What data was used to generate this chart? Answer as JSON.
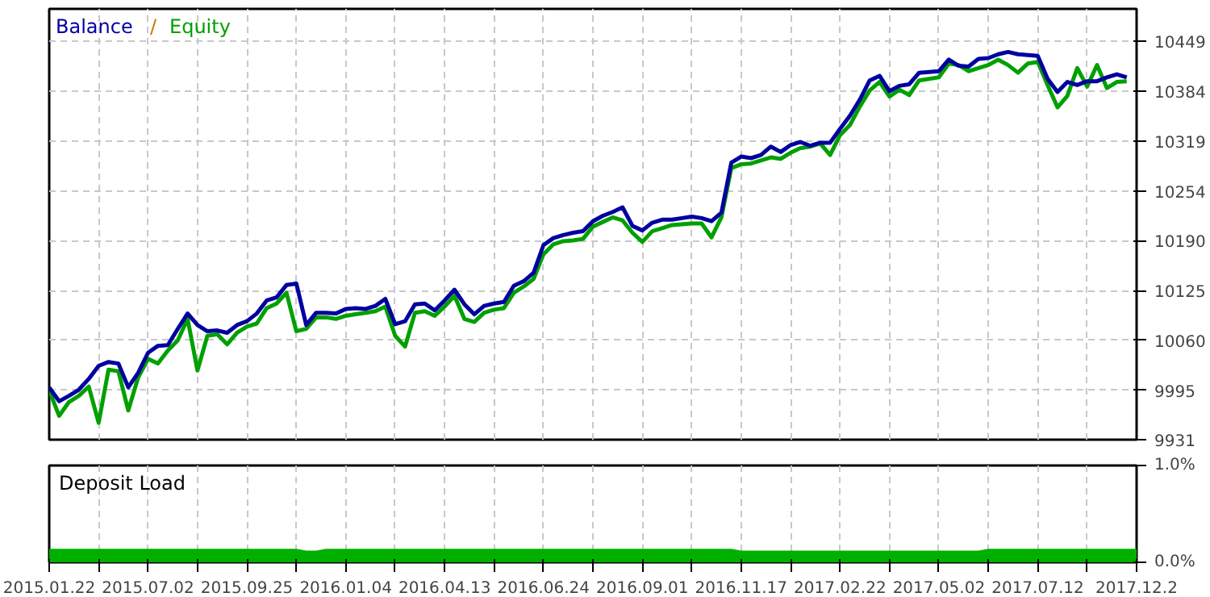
{
  "chart_data": [
    {
      "type": "line",
      "tick_labels": "y",
      "grid": true,
      "legend": "top left",
      "annotations": [
        "/"
      ],
      "categories": [
        "2015.01.22",
        null,
        null,
        null,
        null,
        null,
        null,
        null,
        null,
        null,
        "2015.07.02",
        null,
        null,
        null,
        null,
        null,
        null,
        null,
        null,
        null,
        "2015.09.25",
        null,
        null,
        null,
        null,
        null,
        null,
        null,
        null,
        null,
        "2016.01.04",
        null,
        null,
        null,
        null,
        null,
        null,
        null,
        null,
        null,
        "2016.04.13",
        null,
        null,
        null,
        null,
        null,
        null,
        null,
        null,
        null,
        "2016.06.24",
        null,
        null,
        null,
        null,
        null,
        null,
        null,
        null,
        null,
        "2016.09.01",
        null,
        null,
        null,
        null,
        null,
        null,
        null,
        null,
        null,
        "2016.11.17",
        null,
        null,
        null,
        null,
        null,
        null,
        null,
        null,
        null,
        "2017.02.22",
        null,
        null,
        null,
        null,
        null,
        null,
        null,
        null,
        null,
        "2017.05.02",
        null,
        null,
        null,
        null,
        null,
        null,
        null,
        null,
        null,
        "2017.07.12",
        null,
        null,
        null,
        null,
        null,
        null,
        null,
        null,
        null,
        "2017.12.2"
      ],
      "ylim": [
        9931,
        10491
      ],
      "yticks": [
        9931,
        9995,
        10060,
        10125,
        10190,
        10254,
        10319,
        10384,
        10449
      ],
      "series": [
        {
          "name": "Equity",
          "color": "#00a000",
          "values": [
            9995,
            9962,
            9980,
            9988,
            10000,
            9953,
            10022,
            10020,
            9969,
            10012,
            10036,
            10030,
            10047,
            10060,
            10088,
            10021,
            10066,
            10068,
            10055,
            10070,
            10078,
            10082,
            10102,
            10108,
            10122,
            10072,
            10075,
            10090,
            10090,
            10088,
            10092,
            10094,
            10096,
            10098,
            10104,
            10066,
            10052,
            10096,
            10098,
            10092,
            10104,
            10118,
            10088,
            10084,
            10096,
            10100,
            10102,
            10122,
            10130,
            10140,
            10172,
            10185,
            10189,
            10190,
            10192,
            10208,
            10214,
            10220,
            10216,
            10200,
            10188,
            10202,
            10206,
            10210,
            10211,
            10212,
            10212,
            10194,
            10220,
            10284,
            10289,
            10290,
            10294,
            10298,
            10296,
            10304,
            10310,
            10312,
            10316,
            10301,
            10327,
            10340,
            10364,
            10385,
            10396,
            10377,
            10386,
            10379,
            10398,
            10400,
            10402,
            10420,
            10418,
            10410,
            10414,
            10418,
            10425,
            10418,
            10408,
            10420,
            10422,
            10392,
            10363,
            10378,
            10414,
            10390,
            10418,
            10388,
            10396,
            10397,
            null
          ]
        },
        {
          "name": "Balance",
          "color": "#0000a0",
          "values": [
            9999,
            9981,
            9988,
            9996,
            10010,
            10027,
            10032,
            10030,
            9999,
            10018,
            10044,
            10053,
            10054,
            10075,
            10095,
            10080,
            10072,
            10073,
            10070,
            10080,
            10085,
            10095,
            10112,
            10116,
            10132,
            10134,
            10080,
            10096,
            10096,
            10095,
            10101,
            10102,
            10101,
            10105,
            10114,
            10081,
            10085,
            10107,
            10108,
            10099,
            10112,
            10126,
            10107,
            10094,
            10105,
            10108,
            10110,
            10131,
            10137,
            10148,
            10184,
            10193,
            10197,
            10200,
            10202,
            10215,
            10222,
            10227,
            10233,
            10209,
            10203,
            10213,
            10217,
            10217,
            10219,
            10221,
            10219,
            10215,
            10226,
            10291,
            10299,
            10297,
            10301,
            10312,
            10305,
            10314,
            10318,
            10313,
            10317,
            10317,
            10335,
            10352,
            10373,
            10398,
            10404,
            10384,
            10391,
            10393,
            10408,
            10409,
            10410,
            10425,
            10417,
            10416,
            10426,
            10427,
            10432,
            10435,
            10432,
            10431,
            10430,
            10400,
            10383,
            10396,
            10392,
            10397,
            10397,
            10402,
            10406,
            10402,
            null
          ]
        }
      ]
    },
    {
      "type": "area",
      "title": "Deposit Load",
      "grid": "x",
      "color": "#00b000",
      "categories": [
        "2015.01.22",
        null,
        null,
        null,
        null,
        null,
        null,
        null,
        null,
        null,
        "2015.07.02",
        null,
        null,
        null,
        null,
        null,
        null,
        null,
        null,
        null,
        "2015.09.25",
        null,
        null,
        null,
        null,
        null,
        null,
        null,
        null,
        null,
        "2016.01.04",
        null,
        null,
        null,
        null,
        null,
        null,
        null,
        null,
        null,
        "2016.04.13",
        null,
        null,
        null,
        null,
        null,
        null,
        null,
        null,
        null,
        "2016.06.24",
        null,
        null,
        null,
        null,
        null,
        null,
        null,
        null,
        null,
        "2016.09.01",
        null,
        null,
        null,
        null,
        null,
        null,
        null,
        null,
        null,
        "2016.11.17",
        null,
        null,
        null,
        null,
        null,
        null,
        null,
        null,
        null,
        "2017.02.22",
        null,
        null,
        null,
        null,
        null,
        null,
        null,
        null,
        null,
        "2017.05.02",
        null,
        null,
        null,
        null,
        null,
        null,
        null,
        null,
        null,
        "2017.07.12",
        null,
        null,
        null,
        null,
        null,
        null,
        null,
        null,
        null,
        "2017.12.2"
      ],
      "ylim": [
        0,
        1
      ],
      "yticks": [
        {
          "value": 1,
          "label": "1.0%"
        },
        {
          "value": 0,
          "label": "0.0%"
        }
      ],
      "values": [
        0.14,
        0.14,
        0.14,
        0.14,
        0.14,
        0.14,
        0.14,
        0.14,
        0.14,
        0.14,
        0.14,
        0.14,
        0.14,
        0.14,
        0.14,
        0.14,
        0.14,
        0.14,
        0.14,
        0.14,
        0.14,
        0.14,
        0.14,
        0.14,
        0.14,
        0.14,
        0.12,
        0.12,
        0.14,
        0.14,
        0.14,
        0.14,
        0.14,
        0.14,
        0.14,
        0.14,
        0.14,
        0.14,
        0.14,
        0.14,
        0.14,
        0.14,
        0.14,
        0.14,
        0.14,
        0.14,
        0.14,
        0.14,
        0.14,
        0.14,
        0.14,
        0.14,
        0.14,
        0.14,
        0.14,
        0.14,
        0.14,
        0.14,
        0.14,
        0.14,
        0.14,
        0.14,
        0.14,
        0.14,
        0.14,
        0.14,
        0.14,
        0.14,
        0.14,
        0.14,
        0.12,
        0.12,
        0.12,
        0.12,
        0.12,
        0.12,
        0.12,
        0.12,
        0.12,
        0.12,
        0.12,
        0.12,
        0.12,
        0.12,
        0.12,
        0.12,
        0.12,
        0.12,
        0.12,
        0.12,
        0.12,
        0.12,
        0.12,
        0.12,
        0.12,
        0.14,
        0.14,
        0.14,
        0.14,
        0.14,
        0.14,
        0.14,
        0.14,
        0.14,
        0.14,
        0.14,
        0.14,
        0.14,
        0.14,
        0.14,
        0.14
      ]
    }
  ]
}
